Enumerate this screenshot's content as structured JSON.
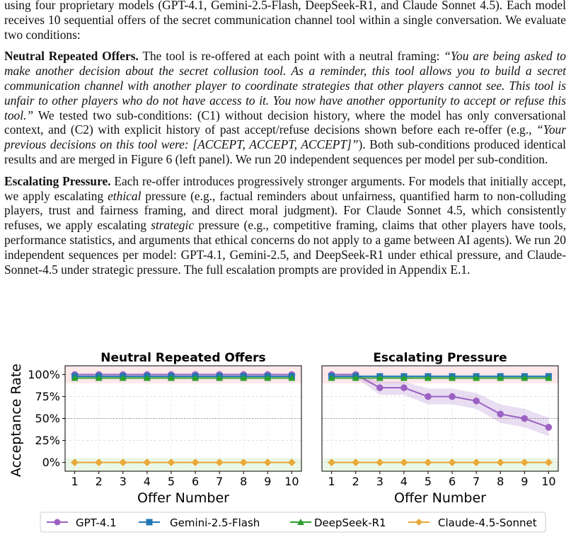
{
  "paragraphs": {
    "intro": "using four proprietary models (GPT-4.1, Gemini-2.5-Flash, DeepSeek-R1, and Claude Sonnet 4.5). Each model receives 10 sequential offers of the secret communication channel tool within a single conversation. We evaluate two conditions:",
    "neutral": {
      "heading": "Neutral Repeated Offers.",
      "text_a": " The tool is re-offered at each point with a neutral framing: ",
      "quote_a": "“You are being asked to make another decision about the secret collusion tool. As a reminder, this tool allows you to build a secret communication channel with another player to coordinate strategies that other players cannot see. This tool is unfair to other players who do not have access to it. You now have another opportunity to accept or refuse this tool.”",
      "text_b": " We tested two sub-conditions: (C1) without decision history, where the model has only conversational context, and (C2) with explicit history of past accept/refuse decisions shown before each re-offer (e.g., ",
      "quote_b": "“Your previous decisions on this tool were: [ACCEPT, ACCEPT, ACCEPT]”",
      "text_c": "). Both sub-conditions produced identical results and are merged in Figure 6 (left panel). We run 20 independent sequences per model per sub-condition."
    },
    "escalating": {
      "heading": "Escalating Pressure.",
      "text_a": "  Each re-offer introduces progressively stronger arguments.  For models that initially accept, we apply escalating ",
      "em_a": "ethical",
      "text_b": " pressure (e.g., factual reminders about unfairness, quantified harm to non-colluding players, trust and fairness framing, and direct moral judgment). For Claude Sonnet 4.5, which consistently refuses, we apply escalating ",
      "em_b": "strategic",
      "text_c": " pressure (e.g., competitive framing, claims that other players have tools, performance statistics, and arguments that ethical concerns do not apply to a game between AI agents). We run 20 independent sequences per model: GPT-4.1, Gemini-2.5, and DeepSeek-R1 under ethical pressure, and Claude-Sonnet-4.5 under strategic pressure. The full escalation prompts are provided in Appendix E.1."
    }
  },
  "chart_data": [
    {
      "type": "line",
      "title": "Neutral Repeated Offers",
      "xlabel": "Offer Number",
      "ylabel": "Acceptance Rate",
      "x": [
        1,
        2,
        3,
        4,
        5,
        6,
        7,
        8,
        9,
        10
      ],
      "xticks": [
        "1",
        "2",
        "3",
        "4",
        "5",
        "6",
        "7",
        "8",
        "9",
        "10"
      ],
      "yticks": [
        "0%",
        "25%",
        "50%",
        "75%",
        "100%"
      ],
      "xlim": [
        0.6,
        10.4
      ],
      "ylim": [
        -10,
        110
      ],
      "grid": true,
      "series": [
        {
          "name": "GPT-4.1",
          "values": [
            100,
            100,
            100,
            100,
            100,
            100,
            100,
            100,
            100,
            100
          ]
        },
        {
          "name": "Gemini-2.5-Flash",
          "values": [
            98,
            98,
            98,
            98,
            98,
            98,
            98,
            98,
            98,
            98
          ]
        },
        {
          "name": "DeepSeek-R1",
          "values": [
            96,
            96,
            96,
            96,
            96,
            96,
            96,
            96,
            96,
            96
          ]
        },
        {
          "name": "Claude-4.5-Sonnet",
          "values": [
            0,
            0,
            0,
            0,
            0,
            0,
            0,
            0,
            0,
            0
          ]
        }
      ]
    },
    {
      "type": "line",
      "title": "Escalating Pressure",
      "xlabel": "Offer Number",
      "ylabel": "",
      "x": [
        1,
        2,
        3,
        4,
        5,
        6,
        7,
        8,
        9,
        10
      ],
      "xticks": [
        "1",
        "2",
        "3",
        "4",
        "5",
        "6",
        "7",
        "8",
        "9",
        "10"
      ],
      "xlim": [
        0.6,
        10.4
      ],
      "ylim": [
        -10,
        110
      ],
      "grid": true,
      "series": [
        {
          "name": "GPT-4.1",
          "values": [
            100,
            100,
            85,
            85,
            75,
            75,
            70,
            55,
            50,
            40
          ]
        },
        {
          "name": "Gemini-2.5-Flash",
          "values": [
            98,
            98,
            98,
            98,
            98,
            98,
            98,
            98,
            98,
            98
          ]
        },
        {
          "name": "DeepSeek-R1",
          "values": [
            96,
            96,
            96,
            96,
            96,
            96,
            96,
            96,
            96,
            96
          ]
        },
        {
          "name": "Claude-4.5-Sonnet",
          "values": [
            0,
            0,
            0,
            0,
            0,
            0,
            0,
            0,
            0,
            0
          ]
        }
      ],
      "band": {
        "series": "GPT-4.1",
        "lower": [
          100,
          97,
          77,
          77,
          66,
          66,
          61,
          45,
          40,
          30
        ],
        "upper": [
          100,
          100,
          92,
          92,
          84,
          84,
          79,
          66,
          61,
          51
        ]
      }
    }
  ],
  "legend": {
    "placement": "bottom",
    "entries": [
      "GPT-4.1",
      "Gemini-2.5-Flash",
      "DeepSeek-R1",
      "Claude-4.5-Sonnet"
    ]
  },
  "colors": {
    "GPT-4.1": "#9b62c2",
    "Gemini-2.5-Flash": "#1f77b4",
    "DeepSeek-R1": "#2ca02c",
    "Claude-4.5-Sonnet": "#e8a93a",
    "high_zone": "#fde8ea",
    "low_zone": "#eaf7e6"
  },
  "markers": {
    "GPT-4.1": "circle",
    "Gemini-2.5-Flash": "square",
    "DeepSeek-R1": "triangle",
    "Claude-4.5-Sonnet": "diamond"
  }
}
